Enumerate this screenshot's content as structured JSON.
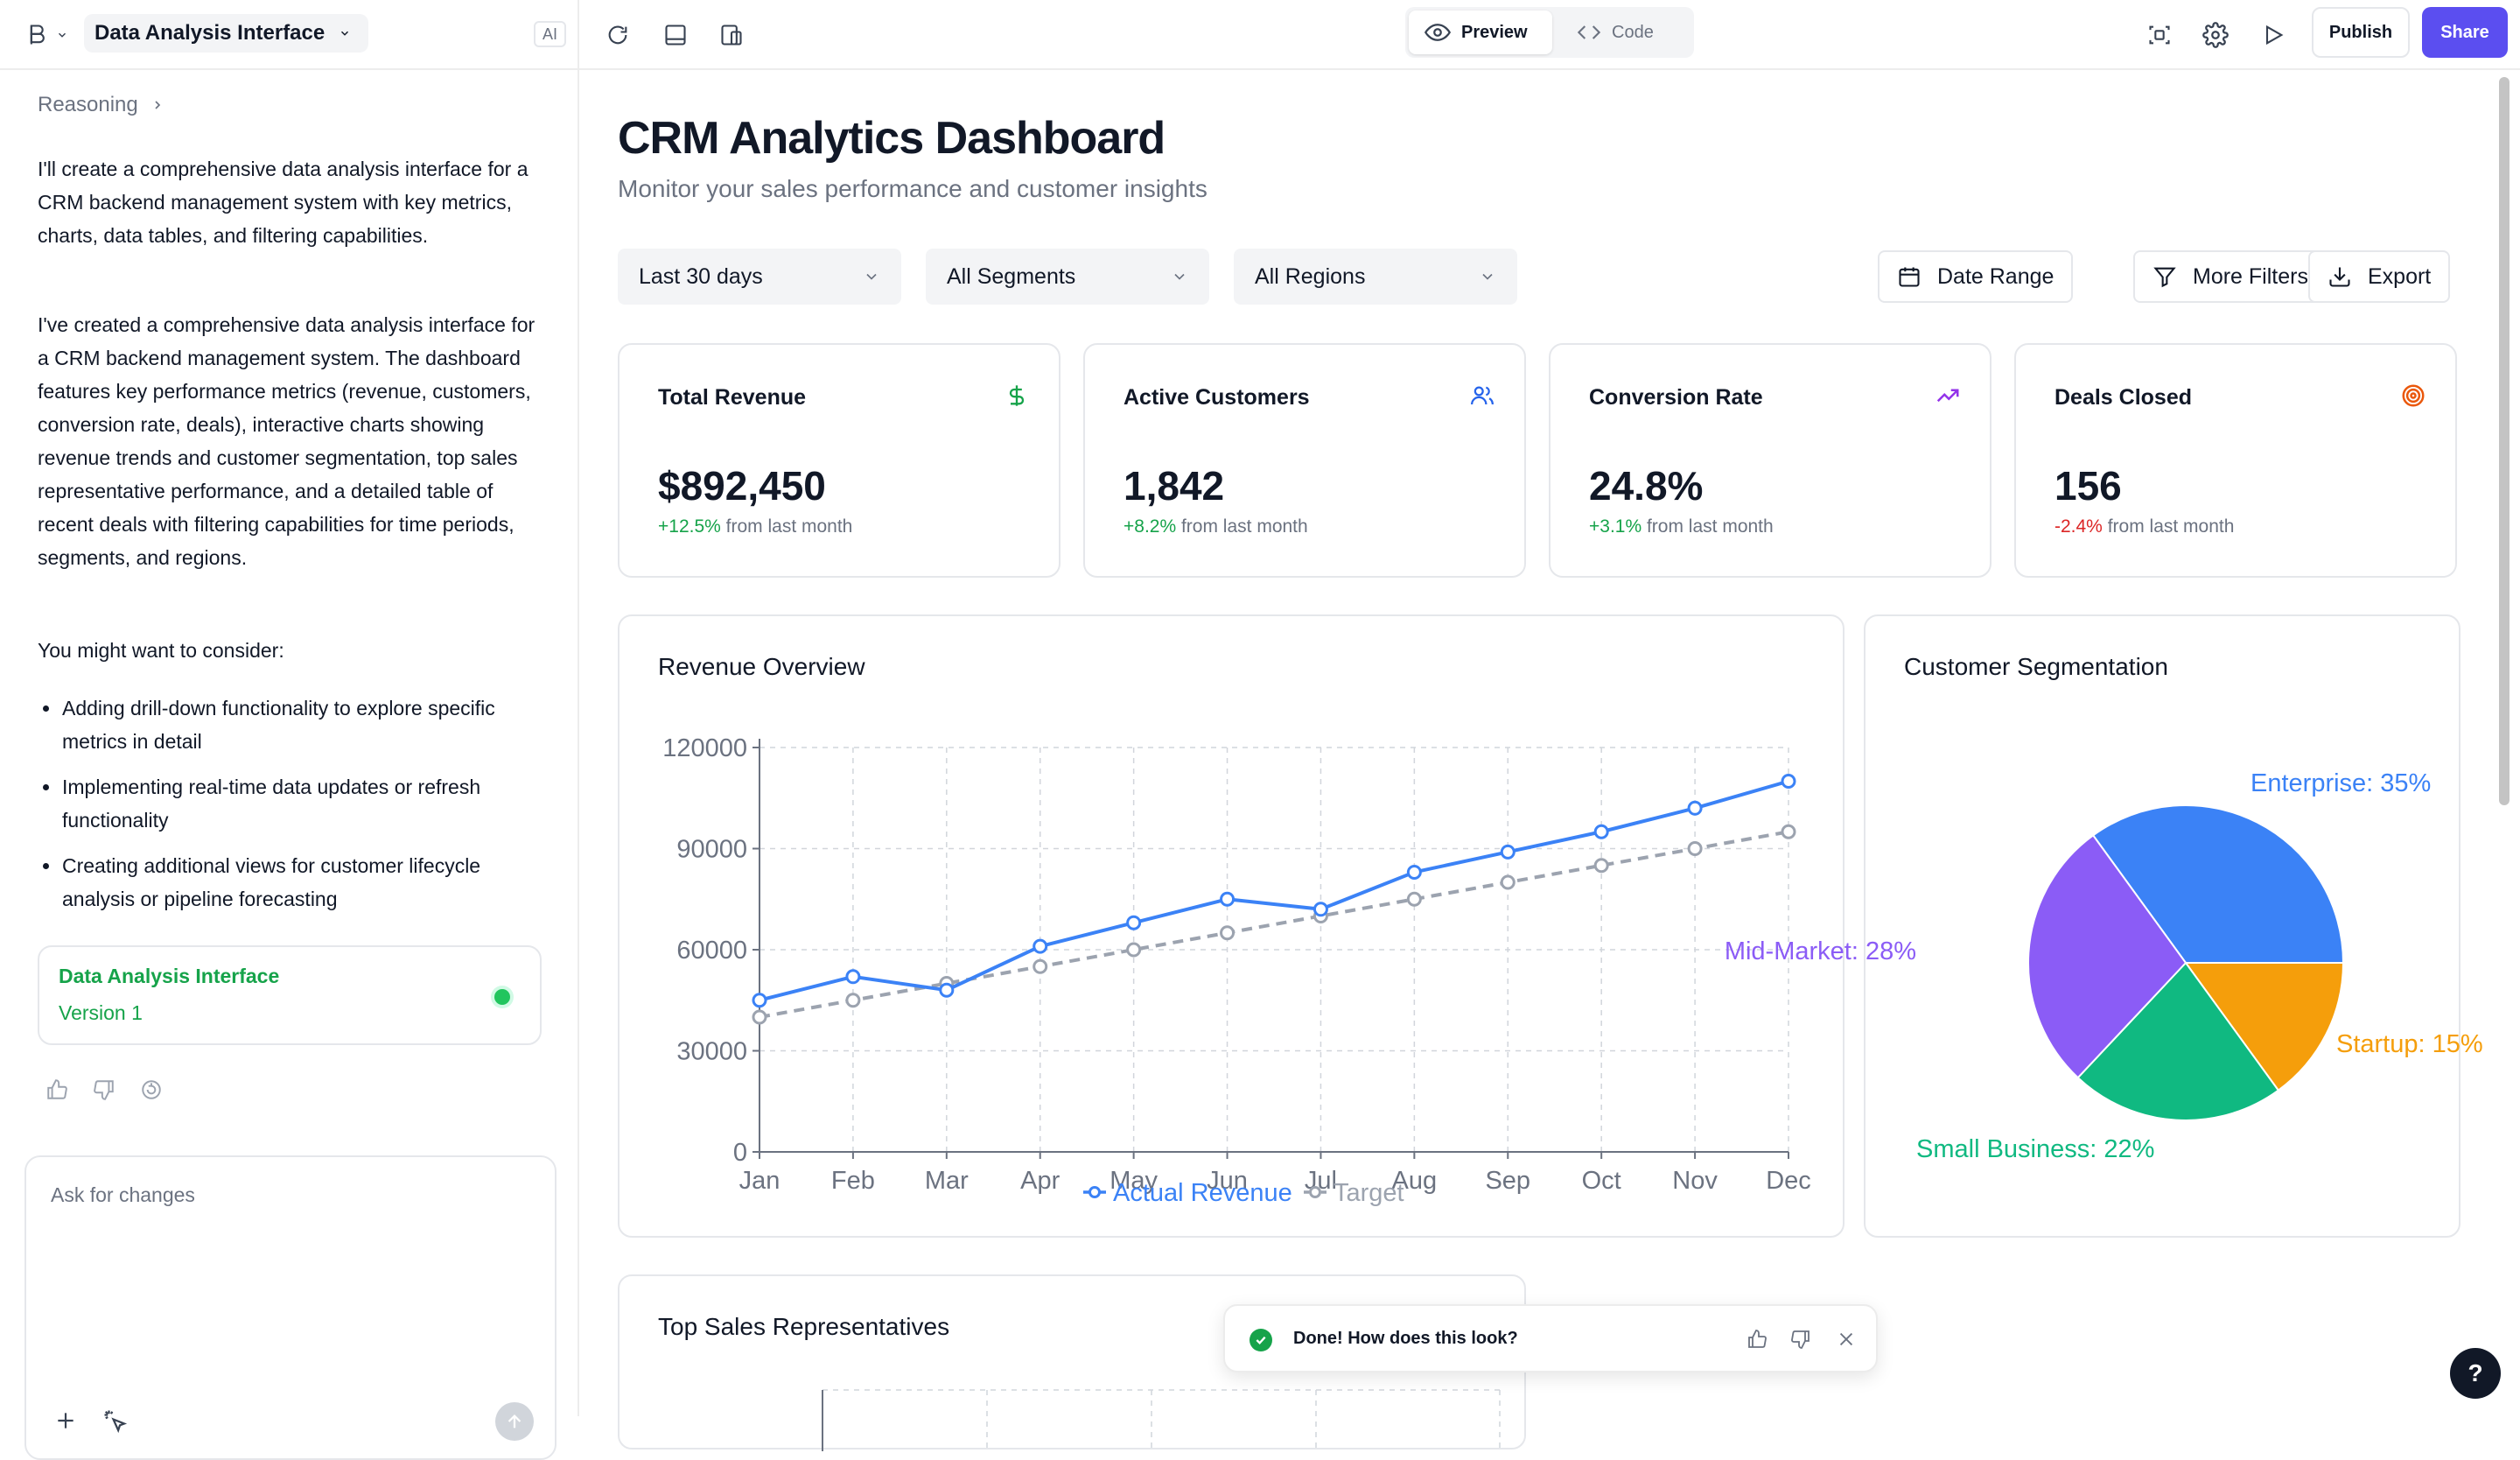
{
  "topbar": {
    "project_name": "Data Analysis Interface",
    "ai_label": "AI",
    "preview_label": "Preview",
    "code_label": "Code",
    "publish_label": "Publish",
    "share_label": "Share",
    "share_color": "#5b4ef0"
  },
  "sidebar": {
    "reasoning_label": "Reasoning",
    "paragraph_1": "I'll create a comprehensive data analysis interface for a CRM backend management system with key metrics, charts, data tables, and filtering capabilities.",
    "paragraph_2": "I've created a comprehensive data analysis interface for a CRM backend management system. The dashboard features key performance metrics (revenue, customers, conversion rate, deals), interactive charts showing revenue trends and customer segmentation, top sales representative performance, and a detailed table of recent deals with filtering capabilities for time periods, segments, and regions.",
    "consider_heading": "You might want to consider:",
    "suggestions": [
      "Adding drill-down functionality to explore specific metrics in detail",
      "Implementing real-time data updates or refresh functionality",
      "Creating additional views for customer lifecycle analysis or pipeline forecasting"
    ],
    "version_card": {
      "title": "Data Analysis Interface",
      "version": "Version 1"
    },
    "composer_placeholder": "Ask for changes"
  },
  "dashboard": {
    "title": "CRM Analytics Dashboard",
    "subtitle": "Monitor your sales performance and customer insights",
    "filters": [
      "Last 30 days",
      "All Segments",
      "All Regions"
    ],
    "actions": {
      "date_range": "Date Range",
      "more_filters": "More Filters",
      "export": "Export"
    },
    "kpis": [
      {
        "title": "Total Revenue",
        "value": "$892,450",
        "change": "+12.5%",
        "change_suffix": " from last month",
        "trend": "up",
        "icon": "dollar-icon",
        "icon_color": "#16a34a"
      },
      {
        "title": "Active Customers",
        "value": "1,842",
        "change": "+8.2%",
        "change_suffix": " from last month",
        "trend": "up",
        "icon": "users-icon",
        "icon_color": "#2563eb"
      },
      {
        "title": "Conversion Rate",
        "value": "24.8%",
        "change": "+3.1%",
        "change_suffix": " from last month",
        "trend": "up",
        "icon": "trending-up-icon",
        "icon_color": "#9333ea"
      },
      {
        "title": "Deals Closed",
        "value": "156",
        "change": "-2.4%",
        "change_suffix": " from last month",
        "trend": "down",
        "icon": "target-icon",
        "icon_color": "#ea580c"
      }
    ],
    "revenue_title": "Revenue Overview",
    "segmentation_title": "Customer Segmentation",
    "top_reps_title": "Top Sales Representatives"
  },
  "chart_data": [
    {
      "type": "line",
      "title": "Revenue Overview",
      "categories": [
        "Jan",
        "Feb",
        "Mar",
        "Apr",
        "May",
        "Jun",
        "Jul",
        "Aug",
        "Sep",
        "Oct",
        "Nov",
        "Dec"
      ],
      "series": [
        {
          "name": "Actual Revenue",
          "color": "#3b82f6",
          "values": [
            45000,
            52000,
            48000,
            61000,
            68000,
            75000,
            72000,
            83000,
            89000,
            95000,
            102000,
            110000
          ]
        },
        {
          "name": "Target",
          "color": "#9ca3af",
          "dashed": true,
          "values": [
            40000,
            45000,
            50000,
            55000,
            60000,
            65000,
            70000,
            75000,
            80000,
            85000,
            90000,
            95000
          ]
        }
      ],
      "y_ticks": [
        0,
        30000,
        60000,
        90000,
        120000
      ],
      "ylim": [
        0,
        120000
      ],
      "grid": true,
      "legend": "bottom-center"
    },
    {
      "type": "pie",
      "title": "Customer Segmentation",
      "slices": [
        {
          "label": "Enterprise: 35%",
          "value": 35,
          "color": "#3b82f6"
        },
        {
          "label": "Startup: 15%",
          "value": 15,
          "color": "#f59e0b"
        },
        {
          "label": "Small Business: 22%",
          "value": 22,
          "color": "#10b981"
        },
        {
          "label": "Mid-Market: 28%",
          "value": 28,
          "color": "#8b5cf6"
        }
      ]
    }
  ],
  "toast": {
    "message": "Done! How does this look?"
  },
  "help_label": "?"
}
